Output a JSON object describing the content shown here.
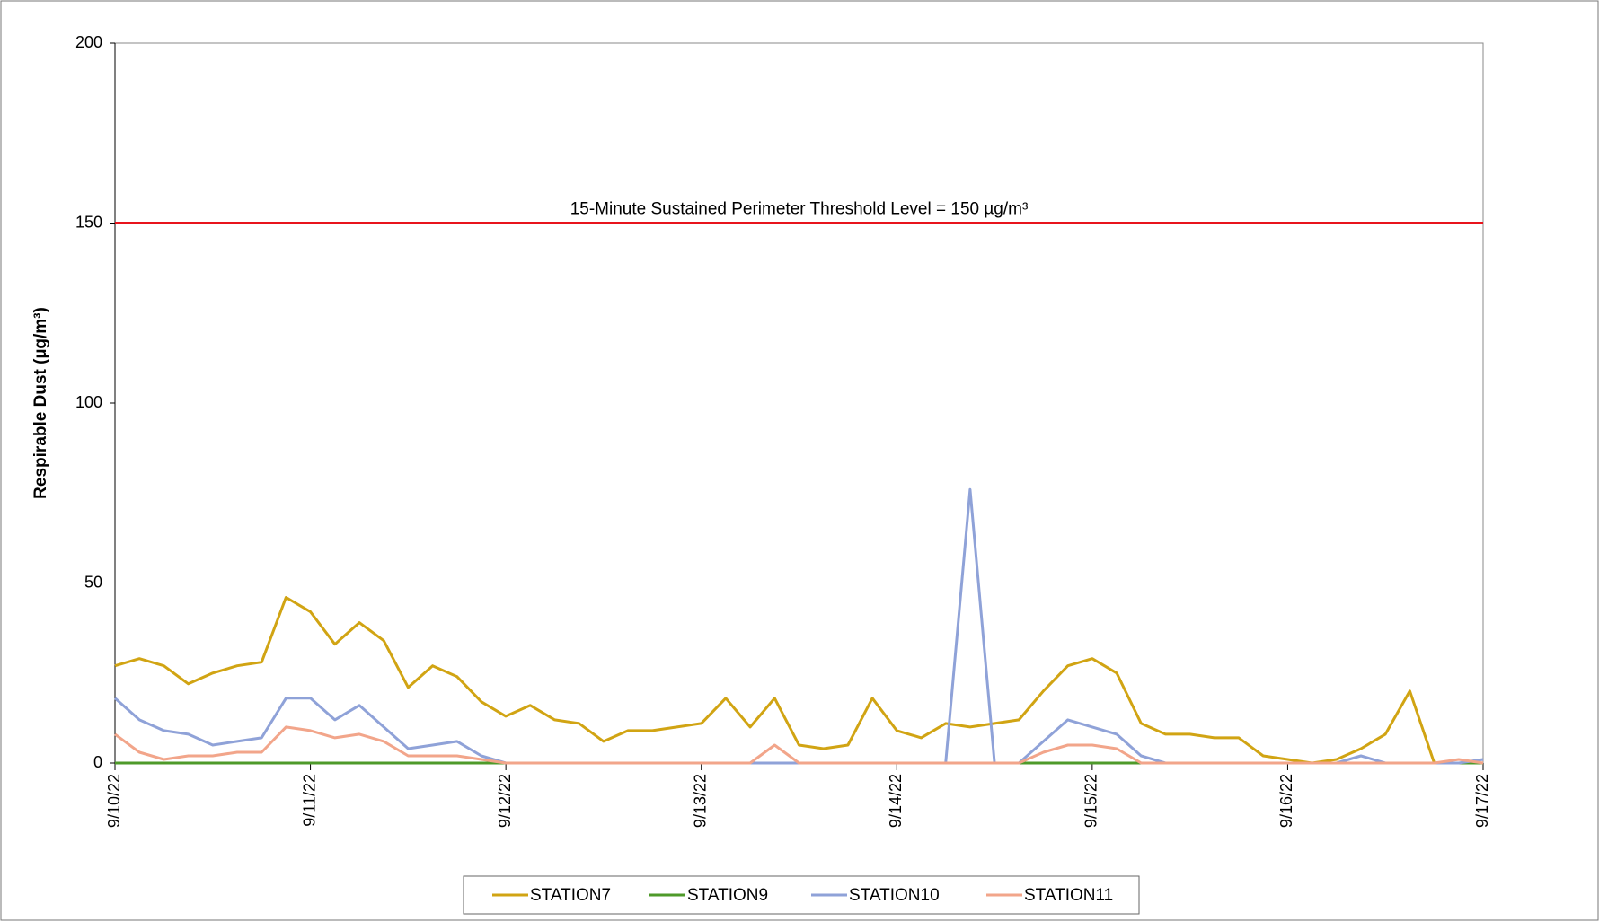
{
  "chart_data": {
    "type": "line",
    "y_label": "Respirable Dust (µg/m³)",
    "x": [
      0,
      0.125,
      0.25,
      0.375,
      0.5,
      0.625,
      0.75,
      0.875,
      1,
      1.125,
      1.25,
      1.375,
      1.5,
      1.625,
      1.75,
      1.875,
      2,
      2.125,
      2.25,
      2.375,
      2.5,
      2.625,
      2.75,
      2.875,
      3,
      3.125,
      3.25,
      3.375,
      3.5,
      3.625,
      3.75,
      3.875,
      4,
      4.125,
      4.25,
      4.375,
      4.5,
      4.625,
      4.75,
      4.875,
      5,
      5.125,
      5.25,
      5.375,
      5.5,
      5.625,
      5.75,
      5.875,
      6,
      6.125,
      6.25,
      6.375,
      6.5,
      6.625,
      6.75,
      6.875,
      7
    ],
    "series": [
      {
        "name": "STATION7",
        "color": "#d1a413",
        "values": [
          27,
          29,
          27,
          22,
          25,
          27,
          28,
          46,
          42,
          33,
          39,
          34,
          21,
          27,
          24,
          17,
          13,
          16,
          12,
          11,
          6,
          9,
          9,
          10,
          11,
          18,
          10,
          18,
          5,
          4,
          5,
          18,
          9,
          7,
          11,
          10,
          11,
          12,
          20,
          27,
          29,
          25,
          11,
          8,
          8,
          7,
          7,
          2,
          1,
          0,
          1,
          4,
          8,
          20,
          0,
          0,
          0
        ]
      },
      {
        "name": "STATION9",
        "color": "#4e9a2a",
        "values": [
          0,
          0,
          0,
          0,
          0,
          0,
          0,
          0,
          0,
          0,
          0,
          0,
          0,
          0,
          0,
          0,
          0,
          0,
          0,
          0,
          0,
          0,
          0,
          0,
          0,
          0,
          0,
          0,
          0,
          0,
          0,
          0,
          0,
          0,
          0,
          0,
          0,
          0,
          0,
          0,
          0,
          0,
          0,
          0,
          0,
          0,
          0,
          0,
          0,
          0,
          0,
          0,
          0,
          0,
          0,
          0,
          0
        ]
      },
      {
        "name": "STATION10",
        "color": "#8fa2d8",
        "values": [
          18,
          12,
          9,
          8,
          5,
          6,
          7,
          18,
          18,
          12,
          16,
          10,
          4,
          5,
          6,
          2,
          0,
          0,
          0,
          0,
          0,
          0,
          0,
          0,
          0,
          0,
          0,
          0,
          0,
          0,
          0,
          0,
          0,
          0,
          0,
          76,
          0,
          0,
          6,
          12,
          10,
          8,
          2,
          0,
          0,
          0,
          0,
          0,
          0,
          0,
          0,
          2,
          0,
          0,
          0,
          0,
          1
        ]
      },
      {
        "name": "STATION11",
        "color": "#f2a58a",
        "values": [
          8,
          3,
          1,
          2,
          2,
          3,
          3,
          10,
          9,
          7,
          8,
          6,
          2,
          2,
          2,
          1,
          0,
          0,
          0,
          0,
          0,
          0,
          0,
          0,
          0,
          0,
          0,
          5,
          0,
          0,
          0,
          0,
          0,
          0,
          0,
          0,
          0,
          0,
          3,
          5,
          5,
          4,
          0,
          0,
          0,
          0,
          0,
          0,
          0,
          0,
          0,
          0,
          0,
          0,
          0,
          1,
          0
        ]
      }
    ],
    "xlim": [
      0,
      7
    ],
    "xticks": [
      {
        "value": 0,
        "label": "9/10/22"
      },
      {
        "value": 1,
        "label": "9/11/22"
      },
      {
        "value": 2,
        "label": "9/12/22"
      },
      {
        "value": 3,
        "label": "9/13/22"
      },
      {
        "value": 4,
        "label": "9/14/22"
      },
      {
        "value": 5,
        "label": "9/15/22"
      },
      {
        "value": 6,
        "label": "9/16/22"
      },
      {
        "value": 7,
        "label": "9/17/22"
      }
    ],
    "ylim": [
      0,
      200
    ],
    "yticks": [
      0,
      50,
      100,
      150,
      200
    ],
    "grid": false,
    "legend": "bottom",
    "annotations": [
      {
        "value": 150,
        "label": "15-Minute Sustained Perimeter Threshold Level = 150 µg/m³",
        "color": "#e8141c"
      }
    ]
  }
}
